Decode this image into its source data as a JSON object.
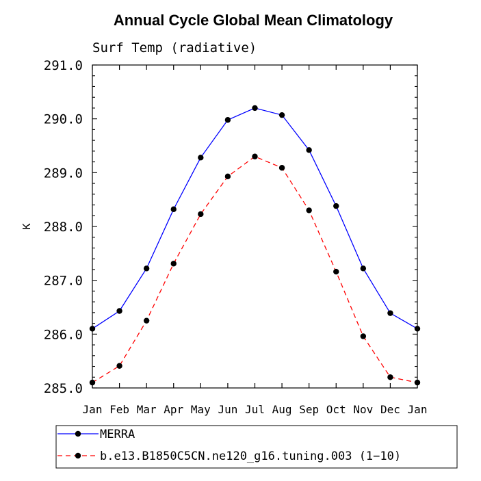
{
  "chart_data": {
    "type": "line",
    "title": "Annual Cycle Global Mean Climatology",
    "subtitle": "Surf Temp (radiative)",
    "xlabel": "",
    "ylabel": "K",
    "categories": [
      "Jan",
      "Feb",
      "Mar",
      "Apr",
      "May",
      "Jun",
      "Jul",
      "Aug",
      "Sep",
      "Oct",
      "Nov",
      "Dec",
      "Jan"
    ],
    "ylim": [
      285.0,
      291.0
    ],
    "yticks": [
      "285.0",
      "286.0",
      "287.0",
      "288.0",
      "289.0",
      "290.0",
      "291.0"
    ],
    "series": [
      {
        "name": "MERRA",
        "color": "#0000ff",
        "dash": "solid",
        "values": [
          286.1,
          286.43,
          287.22,
          288.32,
          289.28,
          289.98,
          290.2,
          290.07,
          289.42,
          288.38,
          287.22,
          286.39,
          286.1
        ]
      },
      {
        "name": "b.e13.B1850C5CN.ne120_g16.tuning.003 (1−10)",
        "color": "#ff0000",
        "dash": "dashed",
        "values": [
          285.1,
          285.41,
          286.25,
          287.31,
          288.23,
          288.93,
          289.3,
          289.09,
          288.3,
          287.16,
          285.96,
          285.2,
          285.1
        ]
      }
    ],
    "grid": false,
    "legend_position": "bottom"
  }
}
